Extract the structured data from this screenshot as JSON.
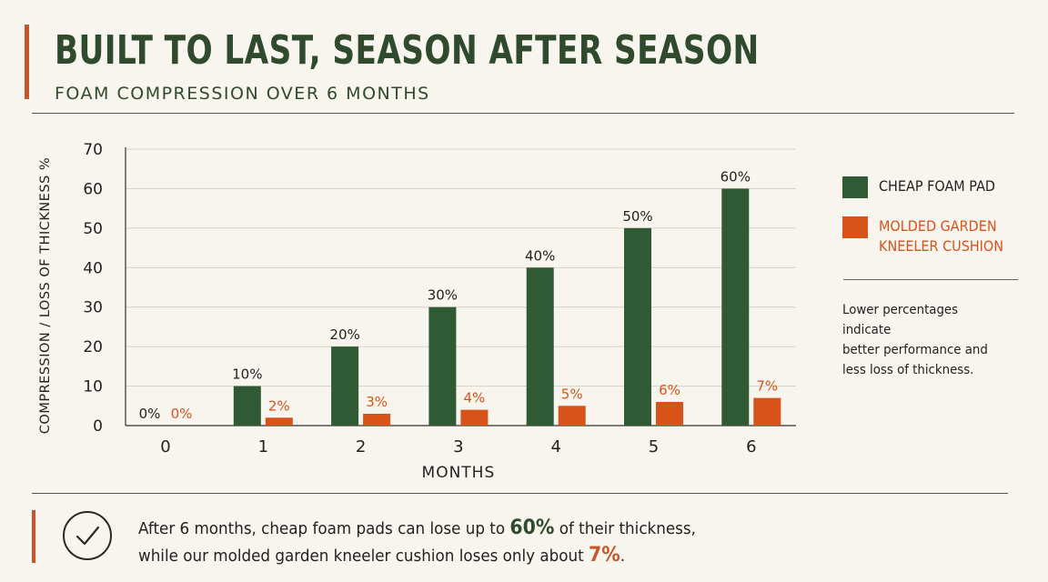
{
  "header": {
    "title": "BUILT TO LAST, SEASON AFTER SEASON",
    "subtitle": "FOAM COMPRESSION OVER 6 MONTHS"
  },
  "colors": {
    "green": "#2f5a33",
    "orange": "#d8531a",
    "accent": "#c8562a"
  },
  "chart_data": {
    "type": "bar",
    "title": "FOAM COMPRESSION OVER 6 MONTHS",
    "xlabel": "MONTHS",
    "ylabel": "COMPRESSION / LOSS OF THICKNESS %",
    "categories": [
      "0",
      "1",
      "2",
      "3",
      "4",
      "5",
      "6"
    ],
    "ylim": [
      0,
      70
    ],
    "yticks": [
      0,
      10,
      20,
      30,
      40,
      50,
      60,
      70
    ],
    "grid": true,
    "legend_position": "right",
    "series": [
      {
        "name": "CHEAP FOAM PAD",
        "color": "#2f5a33",
        "values": [
          0,
          10,
          20,
          30,
          40,
          50,
          60
        ],
        "labels": [
          "0%",
          "10%",
          "20%",
          "30%",
          "40%",
          "50%",
          "60%"
        ]
      },
      {
        "name": "MOLDED GARDEN KNEELER CUSHION",
        "color": "#d8531a",
        "values": [
          0,
          2,
          3,
          4,
          5,
          6,
          7
        ],
        "labels": [
          "0%",
          "2%",
          "3%",
          "4%",
          "5%",
          "6%",
          "7%"
        ]
      }
    ]
  },
  "legend": {
    "green_line1": "CHEAP FOAM PAD",
    "orange_line1": "MOLDED GARDEN",
    "orange_line2": "KNEELER CUSHION",
    "note_line1": "Lower percentages indicate",
    "note_line2": "better performance and",
    "note_line3": "less loss of thickness."
  },
  "callout": {
    "line1_pre": "After 6 months, cheap foam pads can lose up to ",
    "line1_value": "60%",
    "line1_post": " of their thickness,",
    "line2_pre": "while our molded garden kneeler cushion loses only about ",
    "line2_value": "7%",
    "line2_post": ".",
    "icon": "check-circle-icon"
  }
}
